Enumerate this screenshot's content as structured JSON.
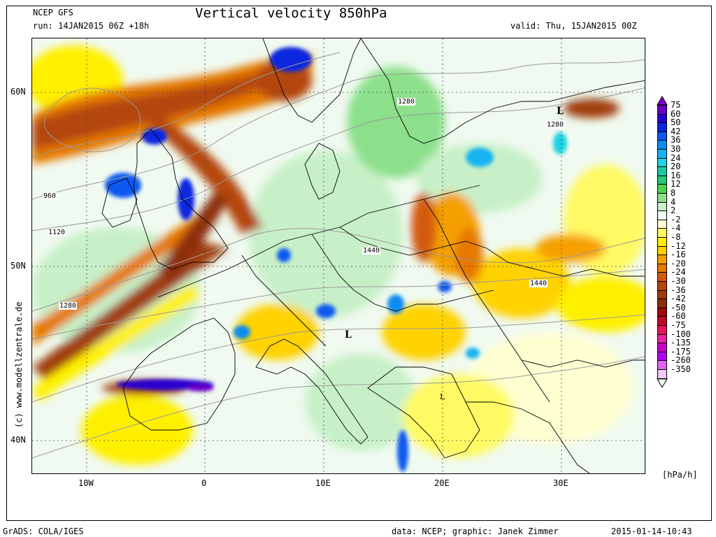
{
  "header": {
    "model": "NCEP GFS",
    "run": "run: 14JAN2015 06Z +18h",
    "title": "Vertical velocity 850hPa",
    "valid": "valid: Thu, 15JAN2015 00Z"
  },
  "footer": {
    "grads": "GrADS: COLA/IGES",
    "credit": "data: NCEP; graphic: Janek Zimmer",
    "timestamp": "2015-01-14-10:43"
  },
  "copyright": "(c) www.modellzentrale.de",
  "axes": {
    "lat_labels": [
      "60N",
      "50N",
      "40N"
    ],
    "lon_labels": [
      "10W",
      "0",
      "10E",
      "20E",
      "30E"
    ]
  },
  "map_labels": {
    "contours": [
      "960",
      "1120",
      "1280",
      "1280",
      "1280",
      "1440",
      "1440"
    ],
    "lows": [
      "L",
      "L",
      "L"
    ]
  },
  "legend": {
    "unit": "[hPa/h]",
    "top_arrow_color": "#7b00d6",
    "bottom_arrow_color": "#ffffff",
    "entries": [
      {
        "label": "75",
        "color": "#6a00c8"
      },
      {
        "label": "60",
        "color": "#2a00d0"
      },
      {
        "label": "50",
        "color": "#0a28e0"
      },
      {
        "label": "42",
        "color": "#0a5af0"
      },
      {
        "label": "36",
        "color": "#0a8cf0"
      },
      {
        "label": "30",
        "color": "#14b4f0"
      },
      {
        "label": "24",
        "color": "#1ed2e0"
      },
      {
        "label": "20",
        "color": "#20c8a0"
      },
      {
        "label": "16",
        "color": "#28c878"
      },
      {
        "label": "12",
        "color": "#50d250"
      },
      {
        "label": "8",
        "color": "#8ce08c"
      },
      {
        "label": "4",
        "color": "#c8f0c8"
      },
      {
        "label": "2",
        "color": "#f0faf0"
      },
      {
        "label": "-2",
        "color": "#ffffd2"
      },
      {
        "label": "-4",
        "color": "#fffa64"
      },
      {
        "label": "-8",
        "color": "#fff000"
      },
      {
        "label": "-12",
        "color": "#ffd200"
      },
      {
        "label": "-16",
        "color": "#f5a000"
      },
      {
        "label": "-20",
        "color": "#e67800"
      },
      {
        "label": "-24",
        "color": "#d25a0a"
      },
      {
        "label": "-30",
        "color": "#b4460a"
      },
      {
        "label": "-36",
        "color": "#a03c0a"
      },
      {
        "label": "-42",
        "color": "#8c2d0a"
      },
      {
        "label": "-50",
        "color": "#a00a0a"
      },
      {
        "label": "-60",
        "color": "#be0a28"
      },
      {
        "label": "-75",
        "color": "#e6145a"
      },
      {
        "label": "-100",
        "color": "#e628a0"
      },
      {
        "label": "-135",
        "color": "#c800c8"
      },
      {
        "label": "-175",
        "color": "#b400f0"
      },
      {
        "label": "-260",
        "color": "#dc64f0"
      },
      {
        "label": "-350",
        "color": "#f0c8f5"
      }
    ]
  }
}
